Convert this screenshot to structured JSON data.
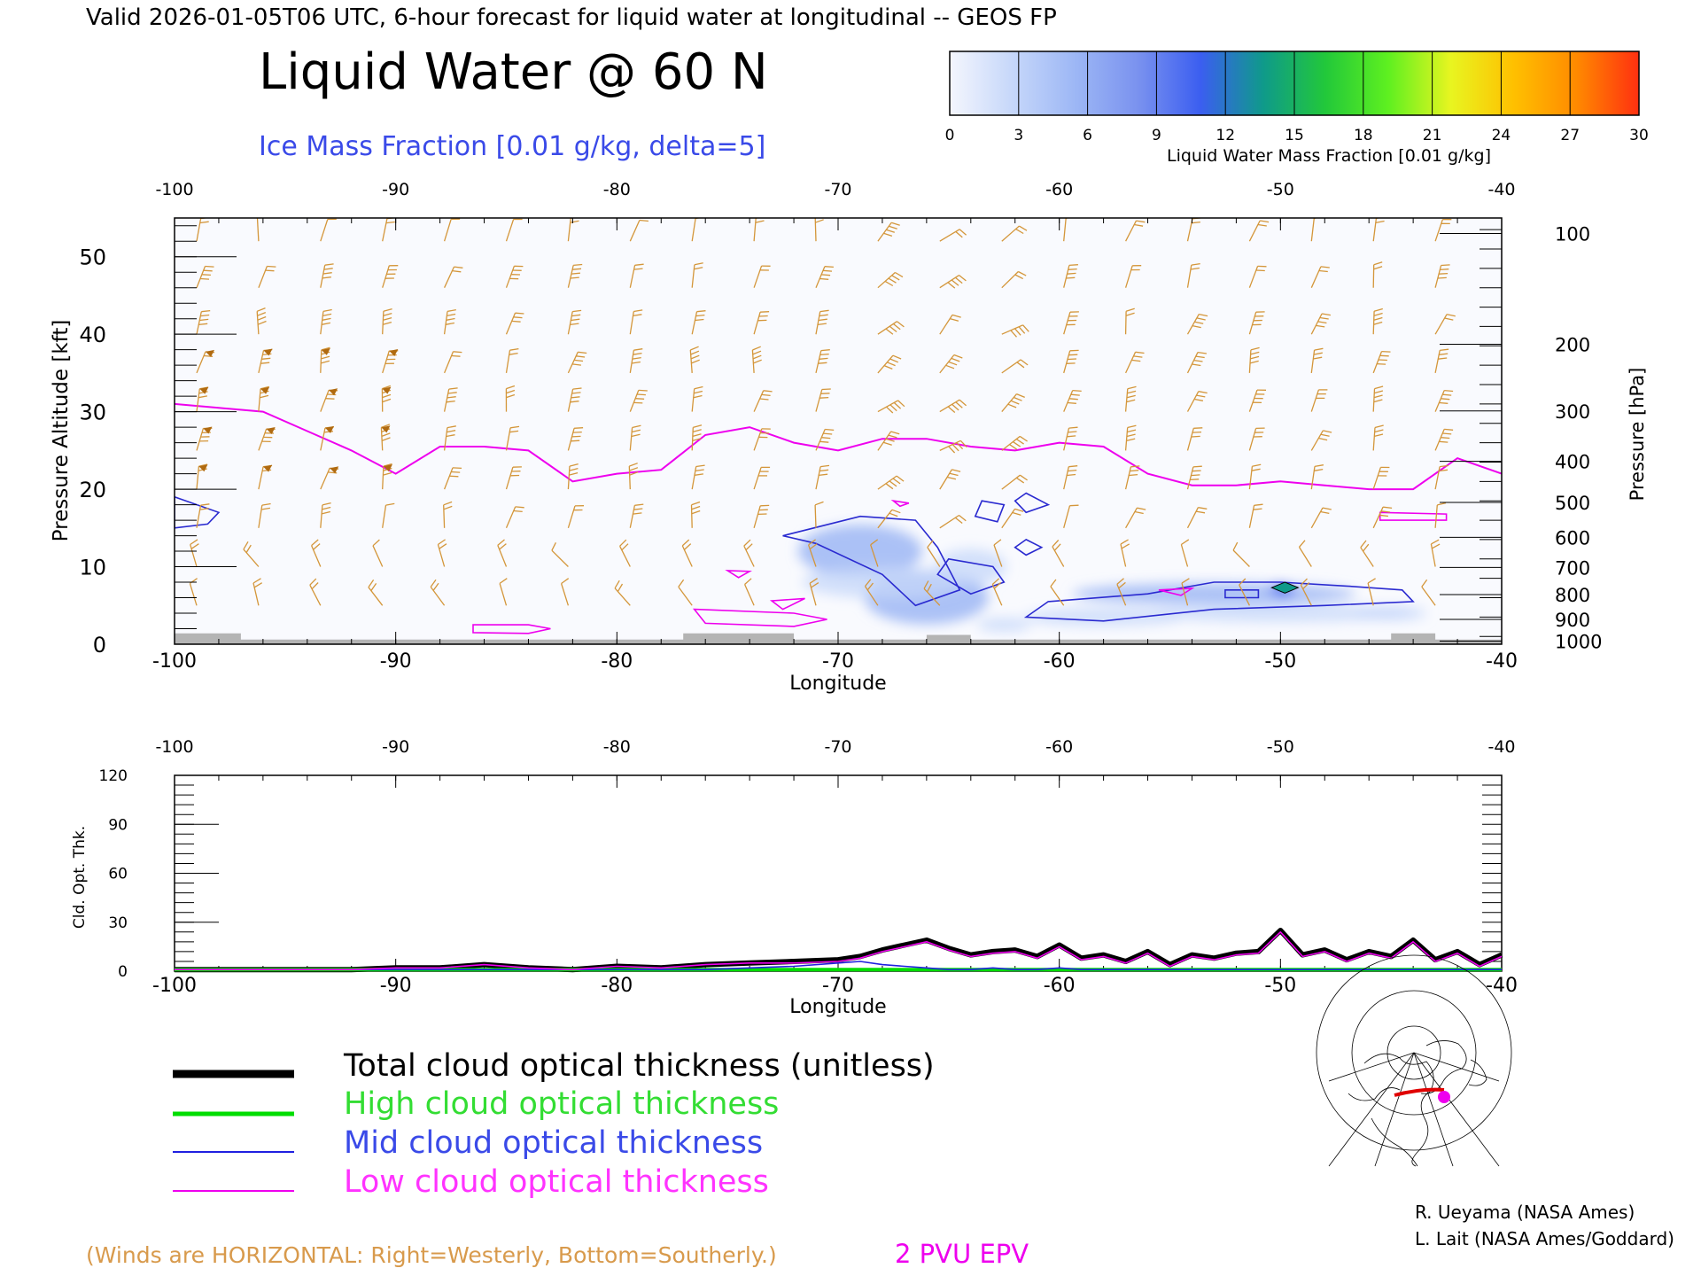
{
  "header": {
    "valid_line": "Valid 2026-01-05T06 UTC, 6-hour forecast for liquid water at longitudinal -- GEOS FP",
    "title": "Liquid Water @ 60 N",
    "subtitle": "Ice Mass Fraction [0.01 g/kg, delta=5]"
  },
  "colorbar": {
    "ticks": [
      "0",
      "3",
      "6",
      "9",
      "12",
      "15",
      "18",
      "21",
      "24",
      "27",
      "30"
    ],
    "label": "Liquid Water Mass Fraction [0.01 g/kg]",
    "colors": [
      "#f4f6fd",
      "#c6d7fa",
      "#9db7f5",
      "#7a92ef",
      "#3b5ef0",
      "#0f9a8a",
      "#22c83a",
      "#5ef020",
      "#e8f520",
      "#ffc000",
      "#ff8a00",
      "#ff3010"
    ]
  },
  "legend": {
    "total": "Total cloud optical thickness (unitless)",
    "high": "High cloud optical thickness",
    "mid": "Mid cloud optical thickness",
    "low": "Low cloud optical thickness",
    "colors": {
      "total": "#000000",
      "high": "#00dd00",
      "mid": "#2020e0",
      "low": "#ee00ee"
    }
  },
  "footer": {
    "winds_note": "(Winds are HORIZONTAL: Right=Westerly, Bottom=Southerly.)",
    "pvu": "2 PVU EPV",
    "credit1": "R. Ueyama (NASA Ames)",
    "credit2": "L. Lait (NASA Ames/Goddard)"
  },
  "chart_data": [
    {
      "type": "heatmap",
      "title": "Liquid Water @ 60 N",
      "xlabel": "Longitude",
      "ylabel": "Pressure Altitude [kft]",
      "ylabel_right": "Pressure [hPa]",
      "xlim": [
        -100,
        -40
      ],
      "ylim": [
        0,
        55
      ],
      "x_ticks": [
        "-100",
        "-90",
        "-80",
        "-70",
        "-60",
        "-50",
        "-40"
      ],
      "top_ticks": [
        "-100",
        "-90",
        "-80",
        "-70",
        "-60",
        "-50",
        "-40"
      ],
      "y_ticks": [
        "0",
        "10",
        "20",
        "30",
        "40",
        "50"
      ],
      "pressure_ticks": [
        {
          "label": "100",
          "kft": 53.0
        },
        {
          "label": "200",
          "kft": 38.7
        },
        {
          "label": "300",
          "kft": 30.1
        },
        {
          "label": "400",
          "kft": 23.6
        },
        {
          "label": "500",
          "kft": 18.3
        },
        {
          "label": "600",
          "kft": 13.8
        },
        {
          "label": "700",
          "kft": 9.9
        },
        {
          "label": "800",
          "kft": 6.4
        },
        {
          "label": "900",
          "kft": 3.2
        },
        {
          "label": "1000",
          "kft": 0.4
        }
      ],
      "epv_2pvu_line": [
        [
          -100,
          31
        ],
        [
          -98,
          30.5
        ],
        [
          -96,
          30
        ],
        [
          -94,
          27.5
        ],
        [
          -92,
          25
        ],
        [
          -90,
          22
        ],
        [
          -88,
          25.5
        ],
        [
          -86,
          25.5
        ],
        [
          -84,
          25
        ],
        [
          -82,
          21
        ],
        [
          -80,
          22
        ],
        [
          -78,
          22.5
        ],
        [
          -76,
          27
        ],
        [
          -74,
          28
        ],
        [
          -72,
          26
        ],
        [
          -70,
          25
        ],
        [
          -68,
          26.5
        ],
        [
          -66,
          26.5
        ],
        [
          -64,
          25.5
        ],
        [
          -62,
          25
        ],
        [
          -60,
          26
        ],
        [
          -58,
          25.5
        ],
        [
          -56,
          22
        ],
        [
          -54,
          20.5
        ],
        [
          -52,
          20.5
        ],
        [
          -50,
          21
        ],
        [
          -48,
          20.5
        ],
        [
          -46,
          20
        ],
        [
          -44,
          20
        ],
        [
          -42,
          24
        ],
        [
          -40,
          22
        ]
      ],
      "liquid_water_regions": [
        {
          "lon": -69,
          "kft": 12,
          "value": 3
        },
        {
          "lon": -66,
          "kft": 6,
          "value": 3
        },
        {
          "lon": -53,
          "kft": 6.5,
          "value": 4
        },
        {
          "lon": -50,
          "kft": 7,
          "value": 9
        }
      ]
    },
    {
      "type": "line",
      "xlabel": "Longitude",
      "ylabel": "Cld. Opt. Thk.",
      "xlim": [
        -100,
        -40
      ],
      "ylim": [
        0,
        120
      ],
      "y_ticks": [
        "0",
        "30",
        "60",
        "90",
        "120"
      ],
      "x_ticks": [
        "-100",
        "-90",
        "-80",
        "-70",
        "-60",
        "-50",
        "-40"
      ],
      "top_ticks": [
        "-100",
        "-90",
        "-80",
        "-70",
        "-60",
        "-50",
        "-40"
      ],
      "x": [
        -100,
        -98,
        -96,
        -94,
        -92,
        -90,
        -88,
        -86,
        -84,
        -82,
        -80,
        -78,
        -76,
        -74,
        -72,
        -70,
        -69,
        -68,
        -67,
        -66,
        -65,
        -64,
        -63,
        -62,
        -61,
        -60,
        -59,
        -58,
        -57,
        -56,
        -55,
        -54,
        -53,
        -52,
        -51,
        -50,
        -49,
        -48,
        -47,
        -46,
        -45,
        -44,
        -43,
        -42,
        -41,
        -40
      ],
      "series": [
        {
          "name": "Total cloud optical thickness (unitless)",
          "values": [
            1,
            1,
            1,
            1,
            1,
            2,
            2,
            4,
            2,
            1,
            3,
            2,
            4,
            5,
            6,
            7,
            9,
            13,
            16,
            19,
            14,
            10,
            12,
            13,
            9,
            16,
            8,
            10,
            6,
            12,
            4,
            10,
            8,
            11,
            12,
            25,
            10,
            13,
            7,
            12,
            9,
            19,
            7,
            12,
            4,
            10
          ]
        },
        {
          "name": "High cloud optical thickness",
          "values": [
            1,
            1,
            1,
            1,
            1,
            1,
            1,
            1,
            1,
            1,
            1,
            1,
            1,
            1,
            1,
            1,
            1,
            1,
            1,
            1,
            1,
            1,
            1,
            1,
            1,
            1,
            1,
            1,
            1,
            1,
            1,
            1,
            1,
            1,
            1,
            1,
            1,
            1,
            1,
            1,
            1,
            1,
            1,
            1,
            1,
            1
          ]
        },
        {
          "name": "Mid cloud optical thickness",
          "values": [
            1,
            1,
            1,
            1,
            1,
            1,
            1,
            1,
            1,
            1,
            1,
            1,
            1,
            2,
            3,
            5,
            6,
            4,
            3,
            2,
            1,
            1,
            2,
            1,
            1,
            2,
            1,
            1,
            1,
            1,
            1,
            1,
            1,
            1,
            1,
            1,
            1,
            1,
            1,
            1,
            1,
            1,
            1,
            1,
            1,
            1
          ]
        },
        {
          "name": "Low cloud optical thickness",
          "values": [
            1,
            1,
            1,
            1,
            1,
            2,
            2,
            4,
            2,
            1,
            3,
            2,
            4,
            5,
            5,
            6,
            8,
            12,
            15,
            18,
            13,
            9,
            11,
            12,
            8,
            15,
            7,
            9,
            5,
            11,
            3,
            9,
            7,
            10,
            11,
            24,
            9,
            12,
            6,
            11,
            8,
            18,
            6,
            11,
            3,
            9
          ]
        }
      ]
    }
  ]
}
